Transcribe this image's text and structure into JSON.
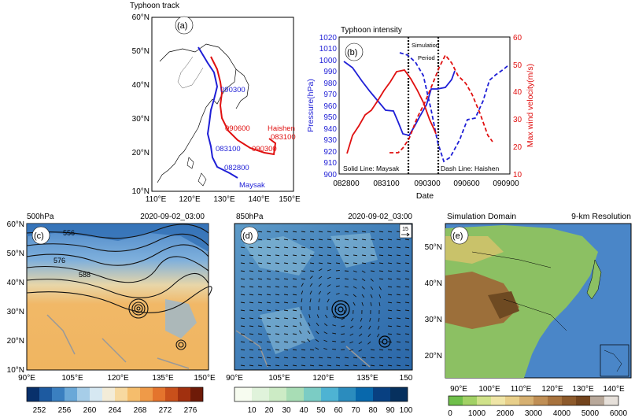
{
  "panel_a": {
    "title": "Typhoon track",
    "label": "(a)",
    "yticks": [
      "60°N",
      "50°N",
      "40°N",
      "30°N",
      "20°N",
      "10°N"
    ],
    "xticks": [
      "110°E",
      "120°E",
      "130°E",
      "140°E",
      "150°E"
    ],
    "blue_labels": [
      "090300",
      "083100",
      "082800",
      "Maysak"
    ],
    "red_labels": [
      "090600",
      "Haishen",
      "083100",
      "090300"
    ],
    "colors": {
      "maysak": "#1f1fd6",
      "haishen": "#e01010"
    }
  },
  "panel_b": {
    "title": "Typhoon intensity",
    "label": "(b)",
    "ylabel_left": "Pressure(hPa)",
    "ylabel_right": "Max wind velocity(m/s)",
    "xlabel": "Date",
    "left_ticks": [
      "1020",
      "1010",
      "1000",
      "990",
      "980",
      "970",
      "960",
      "950",
      "940",
      "930",
      "920",
      "910",
      "900"
    ],
    "right_ticks": [
      "60",
      "50",
      "40",
      "30",
      "20",
      "10"
    ],
    "xticks": [
      "082800",
      "083100",
      "090300",
      "090600",
      "090900"
    ],
    "sim_label_1": "Simulation",
    "sim_label_2": "Period",
    "note_left": "Solid Line: Maysak",
    "note_right": "Dash Line: Haishen"
  },
  "panel_c": {
    "level": "500hPa",
    "time": "2020-09-02_03:00",
    "label": "(c)",
    "yticks": [
      "60°N",
      "50°N",
      "40°N",
      "30°N",
      "20°N",
      "10°N"
    ],
    "xticks": [
      "90°E",
      "105°E",
      "120°E",
      "135°E",
      "150°E"
    ],
    "contour_labels": [
      "556",
      "576",
      "588"
    ],
    "colorbar": [
      "252",
      "256",
      "260",
      "264",
      "268",
      "272",
      "276"
    ]
  },
  "panel_d": {
    "level": "850hPa",
    "time": "2020-09-02_03:00",
    "label": "(d)",
    "ref_vector": "15",
    "xticks": [
      "90°E",
      "105°E",
      "120°E",
      "135°E",
      "150"
    ],
    "colorbar": [
      "10",
      "20",
      "30",
      "40",
      "50",
      "60",
      "70",
      "80",
      "90",
      "100"
    ]
  },
  "panel_e": {
    "title_left": "Simulation Domain",
    "title_right": "9-km Resolution",
    "label": "(e)",
    "yticks": [
      "50°N",
      "40°N",
      "30°N",
      "20°N"
    ],
    "xticks": [
      "90°E",
      "100°E",
      "110°E",
      "120°E",
      "130°E",
      "140°E"
    ],
    "colorbar": [
      "0",
      "1000",
      "2000",
      "3000",
      "4000",
      "5000",
      "6000"
    ]
  }
}
